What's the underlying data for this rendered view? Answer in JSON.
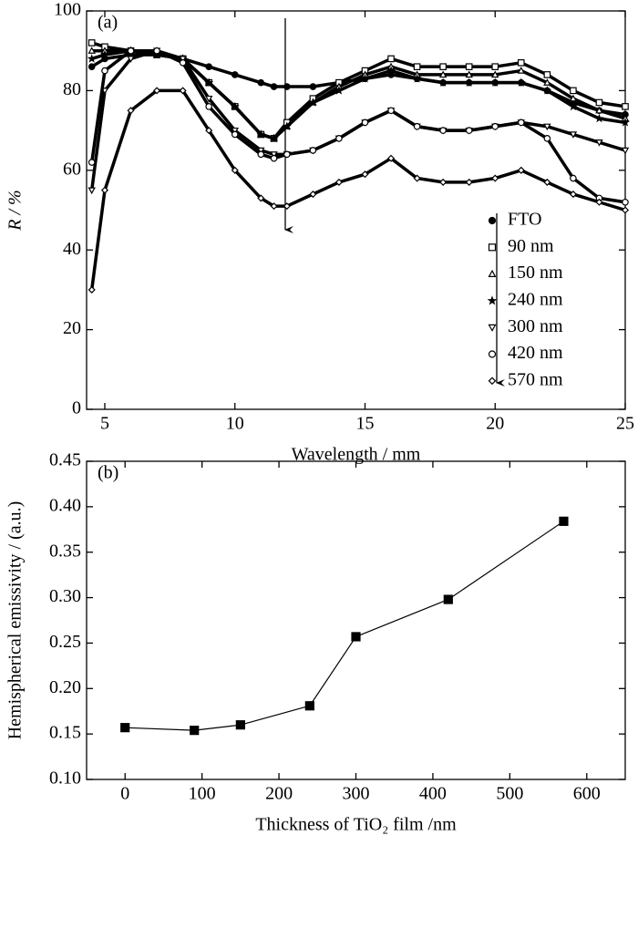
{
  "chart_data": [
    {
      "type": "line",
      "annotation": "(a)",
      "xlabel": "Wavelength / mm",
      "ylabel": "R / %",
      "x": [
        4.5,
        5,
        6,
        7,
        8,
        9,
        10,
        11,
        11.5,
        12,
        13,
        14,
        15,
        16,
        17,
        18,
        19,
        20,
        21,
        22,
        23,
        24,
        25
      ],
      "xlim": [
        4.3,
        25
      ],
      "xticks": [
        5,
        10,
        15,
        20,
        25
      ],
      "ylim": [
        0,
        100
      ],
      "yticks": [
        0,
        20,
        40,
        60,
        80,
        100
      ],
      "legend": "right",
      "series": [
        {
          "name": "FTO",
          "color": "#000000",
          "marker": "circle-filled",
          "values": [
            86,
            88,
            89,
            89,
            88,
            86,
            84,
            82,
            81,
            81,
            81,
            82,
            83,
            84,
            83,
            82,
            82,
            82,
            82,
            80,
            77,
            75,
            74
          ]
        },
        {
          "name": "90 nm",
          "color": "#000000",
          "marker": "square",
          "values": [
            92,
            91,
            90,
            89,
            88,
            82,
            76,
            69,
            68,
            72,
            78,
            82,
            85,
            88,
            86,
            86,
            86,
            86,
            87,
            84,
            80,
            77,
            76
          ]
        },
        {
          "name": "150 nm",
          "color": "#000000",
          "marker": "triangle",
          "values": [
            90,
            90,
            90,
            89,
            88,
            82,
            76,
            69,
            68,
            71,
            77,
            81,
            84,
            86,
            84,
            84,
            84,
            84,
            85,
            82,
            78,
            75,
            73
          ]
        },
        {
          "name": "240 nm",
          "color": "#000000",
          "marker": "star",
          "values": [
            88,
            89,
            90,
            89,
            88,
            82,
            76,
            69,
            68,
            71,
            77,
            80,
            83,
            85,
            83,
            82,
            82,
            82,
            82,
            80,
            76,
            73,
            72
          ]
        },
        {
          "name": "300 nm",
          "color": "#000000",
          "marker": "triangle-down",
          "values": [
            55,
            80,
            88,
            90,
            88,
            78,
            70,
            65,
            64,
            64,
            65,
            68,
            72,
            75,
            71,
            70,
            70,
            71,
            72,
            71,
            69,
            67,
            65
          ]
        },
        {
          "name": "420 nm",
          "color": "#000000",
          "marker": "circle",
          "values": [
            62,
            85,
            90,
            90,
            87,
            76,
            69,
            64,
            63,
            64,
            65,
            68,
            72,
            75,
            71,
            70,
            70,
            71,
            72,
            68,
            58,
            53,
            52
          ]
        },
        {
          "name": "570 nm",
          "color": "#000000",
          "marker": "diamond",
          "values": [
            30,
            55,
            75,
            80,
            80,
            70,
            60,
            53,
            51,
            51,
            54,
            57,
            59,
            63,
            58,
            57,
            57,
            58,
            60,
            57,
            54,
            52,
            50
          ]
        }
      ]
    },
    {
      "type": "line",
      "annotation": "(b)",
      "xlabel": "Thickness of TiO₂ film /nm",
      "ylabel": "Hemispherical emissivity / (a.u.)",
      "x": [
        0,
        90,
        150,
        240,
        300,
        420,
        570
      ],
      "xlim": [
        -50,
        650
      ],
      "xticks": [
        0,
        100,
        200,
        300,
        400,
        500,
        600
      ],
      "ylim": [
        0.1,
        0.45
      ],
      "yticks": [
        {
          "value": 0.1,
          "label": "0.10"
        },
        {
          "value": 0.15,
          "label": "0.15"
        },
        {
          "value": 0.2,
          "label": "0.20"
        },
        {
          "value": 0.25,
          "label": "0.25"
        },
        {
          "value": 0.3,
          "label": "0.30"
        },
        {
          "value": 0.35,
          "label": "0.35"
        },
        {
          "value": 0.4,
          "label": "0.40"
        },
        {
          "value": 0.45,
          "label": "0.45"
        }
      ],
      "series": [
        {
          "color": "#000000",
          "marker": "square-filled",
          "values": [
            0.157,
            0.154,
            0.16,
            0.181,
            0.257,
            0.298,
            0.384
          ]
        }
      ]
    }
  ]
}
